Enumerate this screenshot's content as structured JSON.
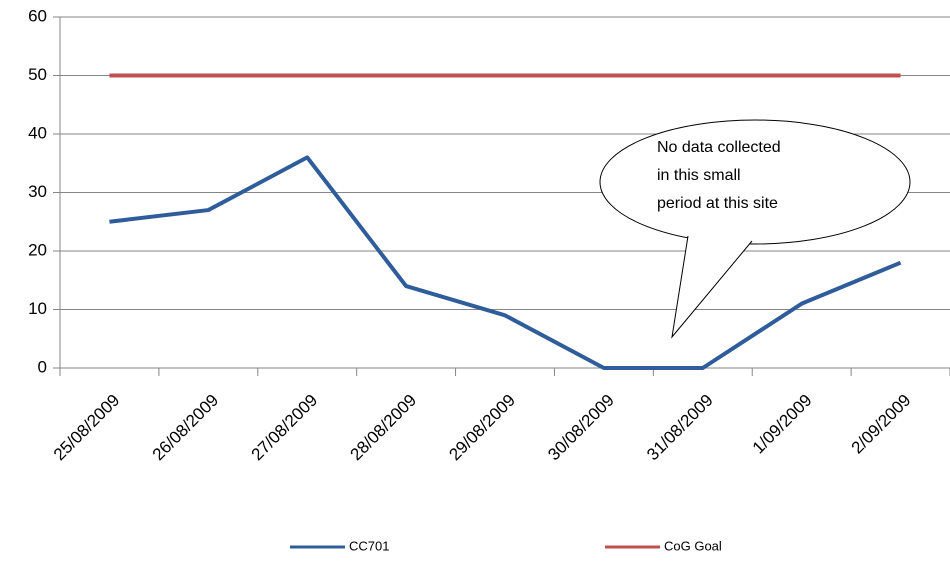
{
  "chart_data": {
    "type": "line",
    "categories": [
      "25/08/2009",
      "26/08/2009",
      "27/08/2009",
      "28/08/2009",
      "29/08/2009",
      "30/08/2009",
      "31/08/2009",
      "1/09/2009",
      "2/09/2009"
    ],
    "series": [
      {
        "name": "CC701",
        "color": "#2f5d9b",
        "values": [
          25,
          27,
          36,
          14,
          9,
          0,
          0,
          11,
          18
        ]
      },
      {
        "name": "CoG Goal",
        "color": "#c0504d",
        "values": [
          50,
          50,
          50,
          50,
          50,
          50,
          50,
          50,
          50
        ]
      }
    ],
    "ylim": [
      0,
      60
    ],
    "yticks": [
      0,
      10,
      20,
      30,
      40,
      50,
      60
    ],
    "grid": true,
    "annotation": [
      "No data collected",
      "in this small",
      "period at this site"
    ]
  }
}
